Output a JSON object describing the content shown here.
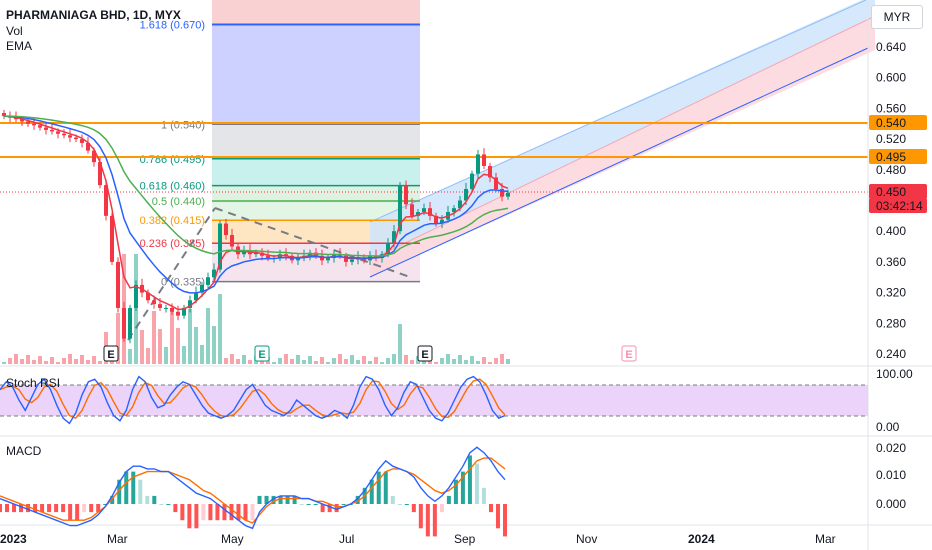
{
  "header": {
    "title": "PHARMANIAGA BHD, 1D, MYX",
    "vol_label": "Vol",
    "ema_label": "EMA",
    "currency": "MYR",
    "stoch_label": "Stoch RSI",
    "macd_label": "MACD"
  },
  "price_axis": {
    "ticks": [
      "0.640",
      "0.600",
      "0.560",
      "0.520",
      "0.480",
      "0.400",
      "0.360",
      "0.320",
      "0.280",
      "0.240"
    ]
  },
  "price_tags": [
    {
      "text": "0.540",
      "bg": "#ff9800",
      "fg": "#131722"
    },
    {
      "text": "0.495",
      "bg": "#ff9800",
      "fg": "#131722"
    },
    {
      "text": "0.450",
      "bg": "#f23645",
      "fg": "#ffffff"
    },
    {
      "text": "03:42:14",
      "bg": "#f23645",
      "fg": "#ffffff"
    }
  ],
  "fib_levels": [
    {
      "label": "1.618 (0.670)",
      "color": "#2962ff"
    },
    {
      "label": "1 (0.540)",
      "color": "#787b86"
    },
    {
      "label": "0.786 (0.495)",
      "color": "#089981"
    },
    {
      "label": "0.618 (0.460)",
      "color": "#089981"
    },
    {
      "label": "0.5 (0.440)",
      "color": "#4caf50"
    },
    {
      "label": "0.382 (0.415)",
      "color": "#ff9800"
    },
    {
      "label": "0.236 (0.385)",
      "color": "#f23645"
    },
    {
      "label": "0 (0.335)",
      "color": "#787b86"
    }
  ],
  "events": [
    {
      "label": "E"
    },
    {
      "label": "E"
    },
    {
      "label": "E"
    },
    {
      "label": "E"
    }
  ],
  "stoch_axis": {
    "ticks": [
      "100.00",
      "0.00"
    ]
  },
  "macd_axis": {
    "ticks": [
      "0.020",
      "0.010",
      "0.000"
    ]
  },
  "time_axis": {
    "ticks": [
      "2023",
      "Mar",
      "May",
      "Jul",
      "Sep",
      "Nov",
      "2024",
      "Mar"
    ]
  },
  "colors": {
    "up": "#089981",
    "down": "#f23645",
    "ema_fast": "#f23645",
    "ema_mid": "#2962ff",
    "ema_slow": "#4caf50",
    "horizontal_line": "#ff9800",
    "channel": "#2962ff",
    "macd_line": "#2962ff",
    "signal_line": "#ff6d00",
    "stoch_k": "#2962ff",
    "stoch_d": "#ff6d00"
  },
  "chart_data": {
    "type": "candlestick",
    "symbol": "PHARMANIAGA BHD",
    "interval": "1D",
    "exchange": "MYX",
    "currency": "MYR",
    "last_price": 0.45,
    "countdown": "03:42:14",
    "price_range": [
      0.23,
      0.685
    ],
    "horizontal_levels": [
      0.54,
      0.495
    ],
    "fibonacci": [
      {
        "ratio": 1.618,
        "price": 0.67
      },
      {
        "ratio": 1,
        "price": 0.54
      },
      {
        "ratio": 0.786,
        "price": 0.495
      },
      {
        "ratio": 0.618,
        "price": 0.46
      },
      {
        "ratio": 0.5,
        "price": 0.44
      },
      {
        "ratio": 0.382,
        "price": 0.415
      },
      {
        "ratio": 0.236,
        "price": 0.385
      },
      {
        "ratio": 0,
        "price": 0.335
      }
    ],
    "close_series": [
      0.55,
      0.548,
      0.546,
      0.543,
      0.54,
      0.538,
      0.535,
      0.532,
      0.53,
      0.527,
      0.525,
      0.522,
      0.52,
      0.515,
      0.505,
      0.49,
      0.46,
      0.42,
      0.36,
      0.3,
      0.26,
      0.3,
      0.33,
      0.32,
      0.31,
      0.305,
      0.3,
      0.3,
      0.295,
      0.29,
      0.3,
      0.31,
      0.32,
      0.33,
      0.34,
      0.35,
      0.41,
      0.395,
      0.38,
      0.37,
      0.375,
      0.37,
      0.372,
      0.368,
      0.365,
      0.365,
      0.37,
      0.368,
      0.362,
      0.365,
      0.368,
      0.372,
      0.368,
      0.362,
      0.365,
      0.37,
      0.368,
      0.36,
      0.363,
      0.366,
      0.362,
      0.368,
      0.365,
      0.37,
      0.385,
      0.4,
      0.46,
      0.435,
      0.42,
      0.425,
      0.43,
      0.42,
      0.41,
      0.415,
      0.425,
      0.43,
      0.44,
      0.455,
      0.475,
      0.5,
      0.485,
      0.47,
      0.455,
      0.445,
      0.45
    ],
    "stoch_rsi_range": [
      0,
      100
    ],
    "macd_range": [
      -0.009,
      0.023
    ],
    "stoch_k": [
      70,
      85,
      75,
      50,
      30,
      55,
      80,
      90,
      70,
      40,
      15,
      5,
      25,
      60,
      85,
      90,
      75,
      45,
      20,
      10,
      30,
      70,
      95,
      85,
      55,
      35,
      40,
      60,
      75,
      85,
      80,
      60,
      40,
      25,
      20,
      15,
      20,
      30,
      50,
      70,
      80,
      60,
      40,
      30,
      25,
      20,
      30,
      50,
      40,
      30,
      20,
      15,
      20,
      30,
      25,
      15,
      40,
      75,
      95,
      90,
      70,
      40,
      20,
      35,
      65,
      85,
      80,
      55,
      30,
      15,
      10,
      25,
      50,
      75,
      90,
      95,
      85,
      60,
      30,
      15,
      20
    ],
    "macd": [
      0.002,
      0.001,
      0.0,
      -0.001,
      -0.002,
      -0.003,
      -0.004,
      -0.005,
      -0.006,
      -0.007,
      -0.008,
      -0.008,
      -0.007,
      -0.006,
      -0.004,
      -0.001,
      0.003,
      0.008,
      0.012,
      0.014,
      0.014,
      0.013,
      0.013,
      0.012,
      0.012,
      0.01,
      0.008,
      0.006,
      0.004,
      0.003,
      0.002,
      0.0,
      -0.002,
      -0.004,
      -0.006,
      -0.008,
      -0.009,
      -0.003,
      0.0,
      0.002,
      0.003,
      0.003,
      0.003,
      0.002,
      0.002,
      0.001,
      0.0,
      -0.001,
      -0.002,
      -0.001,
      0.0,
      0.002,
      0.005,
      0.009,
      0.013,
      0.016,
      0.014,
      0.013,
      0.012,
      0.01,
      0.006,
      0.003,
      0.001,
      0.003,
      0.006,
      0.01,
      0.014,
      0.019,
      0.021,
      0.019,
      0.016,
      0.012,
      0.009
    ],
    "signal": [
      0.003,
      0.002,
      0.001,
      0.0,
      -0.001,
      -0.002,
      -0.003,
      -0.004,
      -0.005,
      -0.006,
      -0.006,
      -0.006,
      -0.006,
      -0.005,
      -0.003,
      -0.001,
      0.002,
      0.005,
      0.008,
      0.01,
      0.011,
      0.012,
      0.012,
      0.012,
      0.012,
      0.011,
      0.01,
      0.009,
      0.007,
      0.005,
      0.004,
      0.002,
      0.0,
      -0.002,
      -0.004,
      -0.006,
      -0.007,
      -0.004,
      -0.001,
      0.001,
      0.002,
      0.002,
      0.002,
      0.002,
      0.002,
      0.001,
      0.001,
      0.0,
      -0.001,
      -0.001,
      0.0,
      0.001,
      0.003,
      0.006,
      0.009,
      0.012,
      0.013,
      0.013,
      0.012,
      0.011,
      0.009,
      0.007,
      0.005,
      0.004,
      0.005,
      0.007,
      0.01,
      0.013,
      0.016,
      0.017,
      0.017,
      0.015,
      0.013
    ]
  }
}
